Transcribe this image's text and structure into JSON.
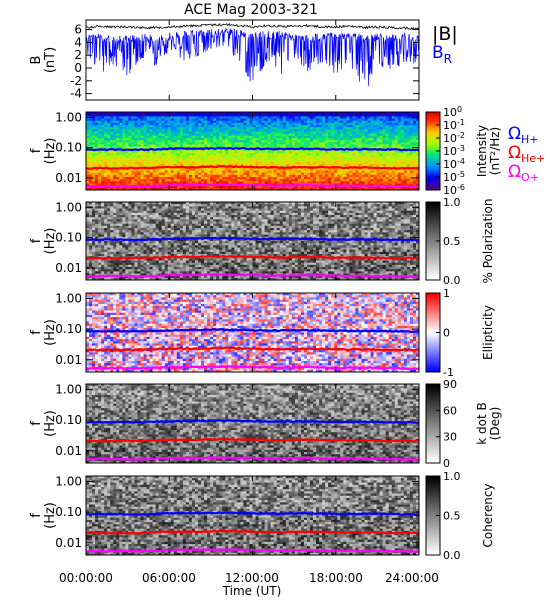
{
  "title": "ACE Mag 2003-321",
  "colors": {
    "b_total": "#000000",
    "b_r": "#0000ff",
    "omega_h": "#0000ff",
    "omega_he": "#ff0000",
    "omega_o": "#ff00ff"
  },
  "chart_data": [
    {
      "type": "line",
      "panel": "magnetic-field",
      "ylabel": "B (nT)",
      "ylabel_lines": [
        "B",
        "(nT)"
      ],
      "ylim": [
        -5,
        7.5
      ],
      "yticks": [
        -4,
        -2,
        0,
        2,
        4,
        6
      ],
      "xlim": [
        0,
        24
      ],
      "xticks": [
        0,
        6,
        12,
        18,
        24
      ],
      "legend": {
        "btotal": "|B|",
        "br_main": "B",
        "br_sub": "R"
      },
      "series": [
        {
          "name": "|B|",
          "color": "#000000",
          "x": [
            0,
            1,
            2,
            3,
            4,
            5,
            6,
            7,
            8,
            9,
            10,
            11,
            12,
            13,
            14,
            15,
            16,
            17,
            18,
            19,
            20,
            21,
            22,
            23,
            24
          ],
          "values": [
            6.5,
            6.7,
            6.6,
            6.6,
            6.5,
            6.5,
            6.6,
            6.7,
            6.8,
            6.9,
            7.0,
            6.8,
            6.6,
            6.8,
            6.7,
            6.7,
            6.8,
            6.6,
            6.6,
            6.7,
            6.5,
            6.6,
            6.5,
            6.4,
            6.3
          ]
        },
        {
          "name": "B_R",
          "color": "#0000ff",
          "x": [
            0,
            1,
            2,
            3,
            4,
            5,
            6,
            7,
            8,
            9,
            10,
            11,
            12,
            13,
            14,
            15,
            16,
            17,
            18,
            19,
            20,
            21,
            22,
            23,
            24
          ],
          "values": [
            5.6,
            5.3,
            5.0,
            5.2,
            5.4,
            5.1,
            5.5,
            5.7,
            5.9,
            6.1,
            6.3,
            6.0,
            5.6,
            5.8,
            5.8,
            5.4,
            5.2,
            5.5,
            5.5,
            5.7,
            5.2,
            5.4,
            5.3,
            5.6,
            5.0
          ],
          "lower_envelope": [
            2.0,
            -1.0,
            0.6,
            -1.2,
            1.5,
            0.4,
            2.3,
            1.2,
            1.8,
            3.0,
            3.5,
            1.0,
            -2.7,
            1.0,
            -1.2,
            1.6,
            -0.5,
            1.0,
            -1.0,
            1.0,
            -4.7,
            0.5,
            -0.5,
            1.0,
            0.5
          ]
        }
      ]
    },
    {
      "type": "heatmap",
      "panel": "intensity",
      "ylabel_lines": [
        "f",
        "(Hz)"
      ],
      "yscale": "log",
      "ylim": [
        0.004,
        1.5
      ],
      "yticks": [
        1.0,
        0.1,
        0.01
      ],
      "ytick_labels": [
        "1.00",
        "0.10",
        "0.01"
      ],
      "colorbar": {
        "label": "Intensity (nT²/Hz)",
        "label_main": "Intensity",
        "label_unit": "(nT²/Hz)",
        "scale": "log",
        "range": [
          1e-06,
          1
        ],
        "ticks": [
          {
            "value": 1,
            "base": "10",
            "exp": "0"
          },
          {
            "value": 0.1,
            "base": "10",
            "exp": "-1"
          },
          {
            "value": 0.01,
            "base": "10",
            "exp": "-2"
          },
          {
            "value": 0.001,
            "base": "10",
            "exp": "-3"
          },
          {
            "value": 0.0001,
            "base": "10",
            "exp": "-4"
          },
          {
            "value": 1e-05,
            "base": "10",
            "exp": "-5"
          },
          {
            "value": 1e-06,
            "base": "10",
            "exp": "-6"
          }
        ]
      },
      "legend": [
        {
          "main": "Ω",
          "sub": "H+",
          "color": "#0000ff"
        },
        {
          "main": "Ω",
          "sub": "He+",
          "color": "#ff0000"
        },
        {
          "main": "Ω",
          "sub": "O+",
          "color": "#ff00ff"
        }
      ]
    },
    {
      "type": "heatmap",
      "panel": "polarization",
      "ylabel_lines": [
        "f",
        "(Hz)"
      ],
      "yscale": "log",
      "ytick_labels": [
        "1.00",
        "0.10",
        "0.01"
      ],
      "colorbar": {
        "label": "% Polarization",
        "range": [
          0,
          1
        ],
        "ticks": [
          "1.0",
          "0.5",
          "0.0"
        ]
      }
    },
    {
      "type": "heatmap",
      "panel": "ellipticity",
      "ylabel_lines": [
        "f",
        "(Hz)"
      ],
      "yscale": "log",
      "ytick_labels": [
        "1.00",
        "0.10",
        "0.01"
      ],
      "colorbar": {
        "label": "Ellipticity",
        "range": [
          -1,
          1
        ],
        "ticks": [
          "1",
          "0",
          "-1"
        ]
      }
    },
    {
      "type": "heatmap",
      "panel": "k-dot-b",
      "ylabel_lines": [
        "f",
        "(Hz)"
      ],
      "yscale": "log",
      "ytick_labels": [
        "1.00",
        "0.10",
        "0.01"
      ],
      "colorbar": {
        "label": "k dot B (Deg)",
        "label_main": "k dot B",
        "label_unit": "(Deg)",
        "range": [
          0,
          90
        ],
        "ticks": [
          "90",
          "60",
          "30",
          "0"
        ]
      }
    },
    {
      "type": "heatmap",
      "panel": "coherency",
      "ylabel_lines": [
        "f",
        "(Hz)"
      ],
      "yscale": "log",
      "ytick_labels": [
        "1.00",
        "0.10",
        "0.01"
      ],
      "colorbar": {
        "label": "Coherency",
        "range": [
          0,
          1
        ],
        "ticks": [
          "1.0",
          "0.5",
          "0.0"
        ]
      }
    }
  ],
  "gyrofrequencies": {
    "x": [
      0,
      2,
      4,
      6,
      8,
      10,
      12,
      14,
      16,
      18,
      20,
      22,
      24
    ],
    "omega_h_hz": [
      0.085,
      0.086,
      0.085,
      0.091,
      0.094,
      0.096,
      0.092,
      0.09,
      0.092,
      0.087,
      0.088,
      0.086,
      0.082
    ],
    "omega_he_hz": [
      0.021,
      0.021,
      0.021,
      0.023,
      0.023,
      0.024,
      0.023,
      0.022,
      0.023,
      0.022,
      0.022,
      0.021,
      0.021
    ],
    "omega_o_hz": [
      0.0053,
      0.0054,
      0.0053,
      0.0057,
      0.0059,
      0.006,
      0.0058,
      0.0056,
      0.0058,
      0.0055,
      0.0055,
      0.0054,
      0.0051
    ]
  },
  "xaxis": {
    "label": "Time (UT)",
    "tick_labels": [
      "00:00:00",
      "06:00:00",
      "12:00:00",
      "18:00:00",
      "24:00:00"
    ]
  }
}
